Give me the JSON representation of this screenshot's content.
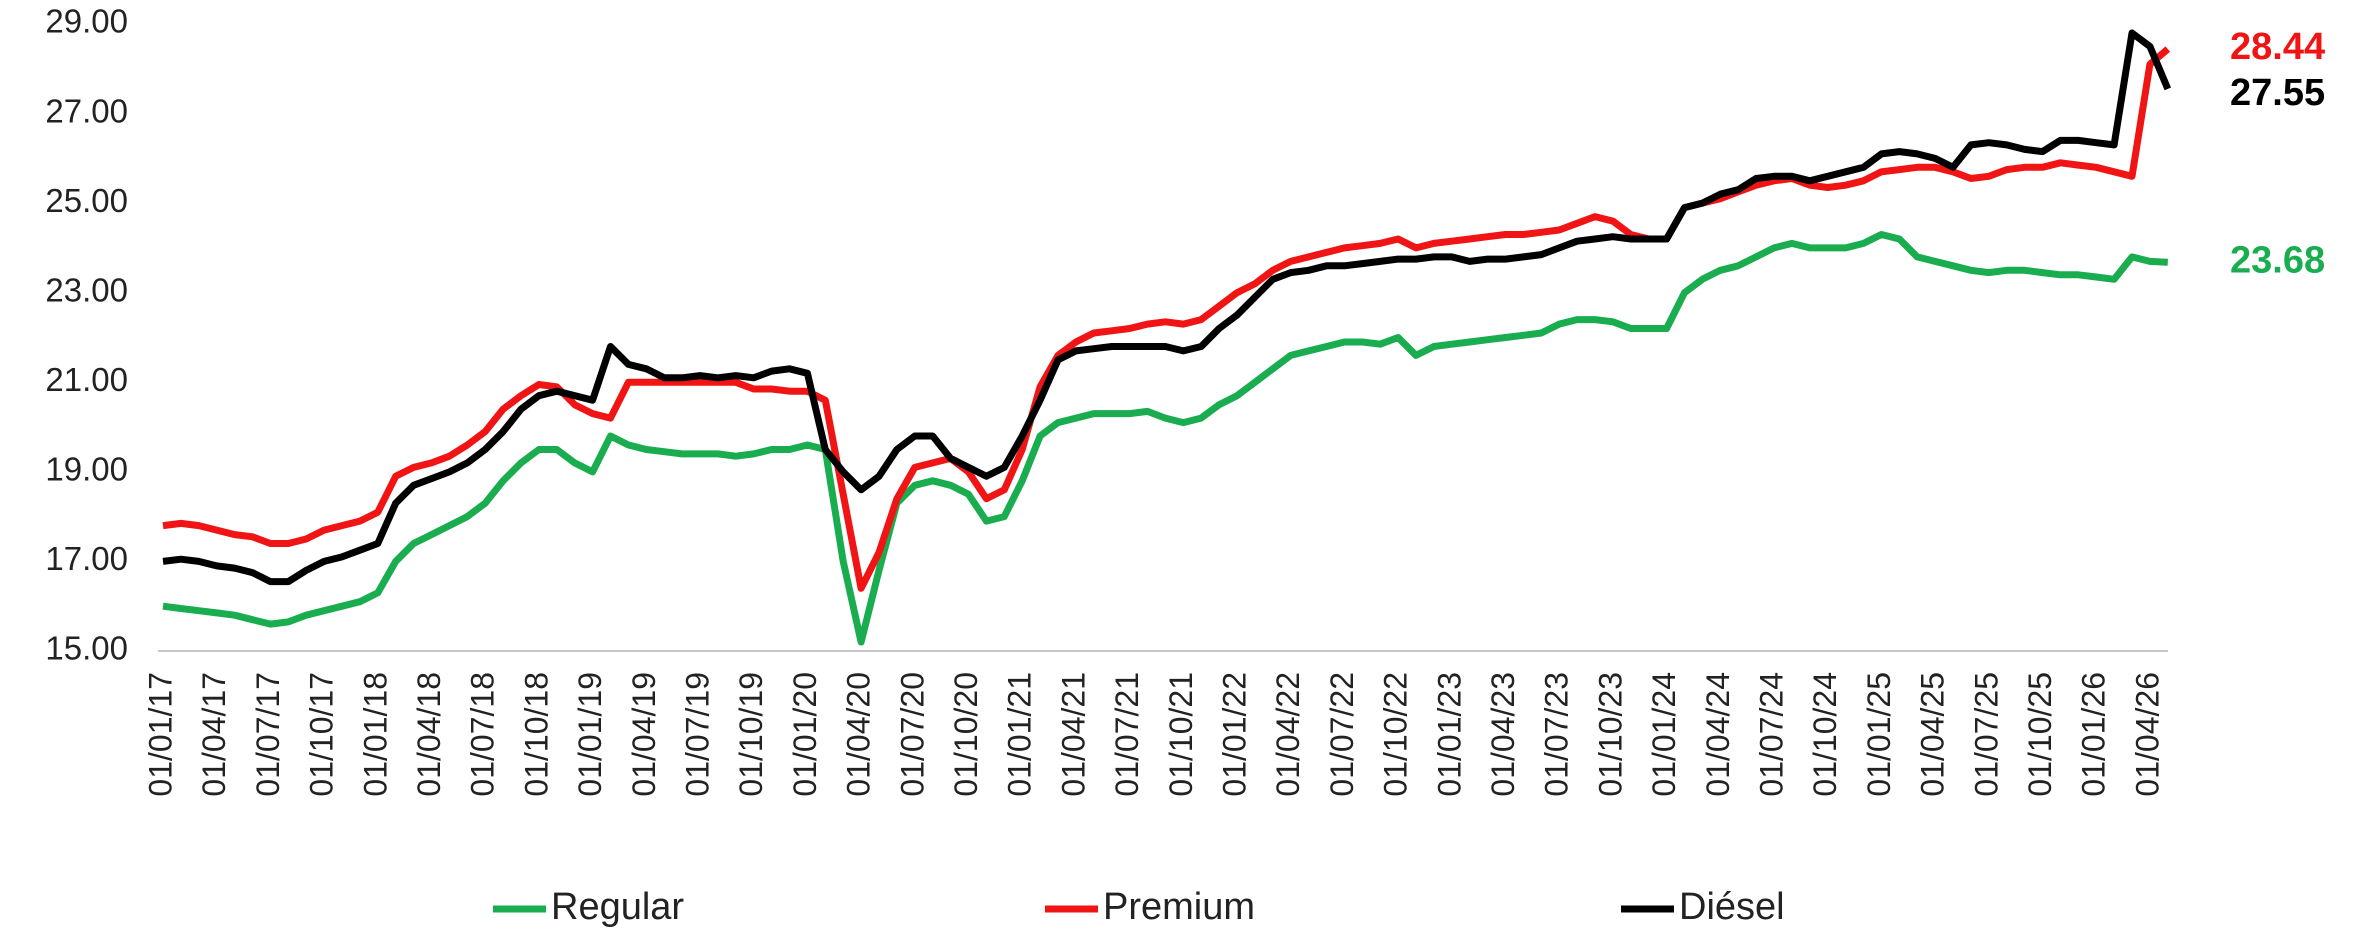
{
  "chart_data": {
    "type": "line",
    "categories": [
      "01/01/17",
      null,
      null,
      "01/04/17",
      null,
      null,
      "01/07/17",
      null,
      null,
      "01/10/17",
      null,
      null,
      "01/01/18",
      null,
      null,
      "01/04/18",
      null,
      null,
      "01/07/18",
      null,
      null,
      "01/10/18",
      null,
      null,
      "01/01/19",
      null,
      null,
      "01/04/19",
      null,
      null,
      "01/07/19",
      null,
      null,
      "01/10/19",
      null,
      null,
      "01/01/20",
      null,
      null,
      "01/04/20",
      null,
      null,
      "01/07/20",
      null,
      null,
      "01/10/20",
      null,
      null,
      "01/01/21",
      null,
      null,
      "01/04/21",
      null,
      null,
      "01/07/21",
      null,
      null,
      "01/10/21",
      null,
      null,
      "01/01/22",
      null,
      null,
      "01/04/22",
      null,
      null,
      "01/07/22",
      null,
      null,
      "01/10/22",
      null,
      null,
      "01/01/23",
      null,
      null,
      "01/04/23",
      null,
      null,
      "01/07/23",
      null,
      null,
      "01/10/23",
      null,
      null,
      "01/01/24",
      null,
      null,
      "01/04/24",
      null,
      null,
      "01/07/24",
      null,
      null,
      "01/10/24",
      null,
      null,
      "01/01/25",
      null,
      null,
      "01/04/25",
      null,
      null,
      "01/07/25",
      null,
      null,
      "01/10/25",
      null,
      null,
      "01/01/26",
      null,
      null,
      "01/04/26",
      null
    ],
    "series": [
      {
        "name": "Regular",
        "color": "#1aad4f",
        "end_label": "23.68",
        "values": [
          16.0,
          15.95,
          15.9,
          15.85,
          15.8,
          15.7,
          15.6,
          15.65,
          15.8,
          15.9,
          16.0,
          16.1,
          16.3,
          17.0,
          17.4,
          17.6,
          17.8,
          18.0,
          18.3,
          18.8,
          19.2,
          19.5,
          19.5,
          19.2,
          19.0,
          19.8,
          19.6,
          19.5,
          19.45,
          19.4,
          19.4,
          19.4,
          19.35,
          19.4,
          19.5,
          19.5,
          19.6,
          19.5,
          17.0,
          15.2,
          16.8,
          18.3,
          18.7,
          18.8,
          18.7,
          18.5,
          17.9,
          18.0,
          18.8,
          19.8,
          20.1,
          20.2,
          20.3,
          20.3,
          20.3,
          20.35,
          20.2,
          20.1,
          20.2,
          20.5,
          20.7,
          21.0,
          21.3,
          21.6,
          21.7,
          21.8,
          21.9,
          21.9,
          21.85,
          22.0,
          21.6,
          21.8,
          21.85,
          21.9,
          21.95,
          22.0,
          22.05,
          22.1,
          22.3,
          22.4,
          22.4,
          22.35,
          22.2,
          22.2,
          22.2,
          23.0,
          23.3,
          23.5,
          23.6,
          23.8,
          24.0,
          24.1,
          24.0,
          24.0,
          24.0,
          24.1,
          24.3,
          24.2,
          23.8,
          23.7,
          23.6,
          23.5,
          23.45,
          23.5,
          23.5,
          23.45,
          23.4,
          23.4,
          23.35,
          23.3,
          23.8,
          23.7,
          23.68
        ]
      },
      {
        "name": "Premium",
        "color": "#f01414",
        "end_label": "28.44",
        "values": [
          17.8,
          17.85,
          17.8,
          17.7,
          17.6,
          17.55,
          17.4,
          17.4,
          17.5,
          17.7,
          17.8,
          17.9,
          18.1,
          18.9,
          19.1,
          19.2,
          19.35,
          19.6,
          19.9,
          20.4,
          20.7,
          20.95,
          20.9,
          20.5,
          20.3,
          20.2,
          21.0,
          21.0,
          21.0,
          21.0,
          21.0,
          21.0,
          21.0,
          20.85,
          20.85,
          20.8,
          20.8,
          20.6,
          18.5,
          16.4,
          17.2,
          18.4,
          19.1,
          19.2,
          19.3,
          19.0,
          18.4,
          18.6,
          19.5,
          20.9,
          21.6,
          21.9,
          22.1,
          22.15,
          22.2,
          22.3,
          22.35,
          22.3,
          22.4,
          22.7,
          23.0,
          23.2,
          23.5,
          23.7,
          23.8,
          23.9,
          24.0,
          24.05,
          24.1,
          24.2,
          24.0,
          24.1,
          24.15,
          24.2,
          24.25,
          24.3,
          24.3,
          24.35,
          24.4,
          24.55,
          24.7,
          24.6,
          24.3,
          24.2,
          24.2,
          24.9,
          25.0,
          25.1,
          25.25,
          25.4,
          25.5,
          25.55,
          25.4,
          25.35,
          25.4,
          25.5,
          25.7,
          25.75,
          25.8,
          25.8,
          25.7,
          25.55,
          25.6,
          25.75,
          25.8,
          25.8,
          25.9,
          25.85,
          25.8,
          25.7,
          25.6,
          28.1,
          28.44
        ]
      },
      {
        "name": "Diésel",
        "color": "#000000",
        "end_label": "27.55",
        "values": [
          17.0,
          17.05,
          17.0,
          16.9,
          16.85,
          16.75,
          16.55,
          16.55,
          16.8,
          17.0,
          17.1,
          17.25,
          17.4,
          18.3,
          18.7,
          18.85,
          19.0,
          19.2,
          19.5,
          19.9,
          20.4,
          20.7,
          20.8,
          20.7,
          20.6,
          21.8,
          21.4,
          21.3,
          21.1,
          21.1,
          21.15,
          21.1,
          21.15,
          21.1,
          21.25,
          21.3,
          21.2,
          19.5,
          19.0,
          18.6,
          18.9,
          19.5,
          19.8,
          19.8,
          19.3,
          19.1,
          18.9,
          19.1,
          19.8,
          20.6,
          21.5,
          21.7,
          21.75,
          21.8,
          21.8,
          21.8,
          21.8,
          21.7,
          21.8,
          22.2,
          22.5,
          22.9,
          23.3,
          23.45,
          23.5,
          23.6,
          23.6,
          23.65,
          23.7,
          23.75,
          23.75,
          23.8,
          23.8,
          23.7,
          23.75,
          23.75,
          23.8,
          23.85,
          24.0,
          24.15,
          24.2,
          24.25,
          24.2,
          24.2,
          24.2,
          24.9,
          25.0,
          25.2,
          25.3,
          25.55,
          25.6,
          25.6,
          25.5,
          25.6,
          25.7,
          25.8,
          26.1,
          26.15,
          26.1,
          26.0,
          25.8,
          26.3,
          26.35,
          26.3,
          26.2,
          26.15,
          26.4,
          26.4,
          26.35,
          26.3,
          28.8,
          28.5,
          27.55
        ]
      }
    ],
    "ylim": [
      15,
      29
    ],
    "yticks": [
      {
        "value": 15,
        "label": "15.00"
      },
      {
        "value": 17,
        "label": "17.00"
      },
      {
        "value": 19,
        "label": "19.00"
      },
      {
        "value": 21,
        "label": "21.00"
      },
      {
        "value": 23,
        "label": "23.00"
      },
      {
        "value": 25,
        "label": "25.00"
      },
      {
        "value": 27,
        "label": "27.00"
      },
      {
        "value": 29,
        "label": "29.00"
      }
    ],
    "grid": false,
    "legend": "bottom"
  }
}
